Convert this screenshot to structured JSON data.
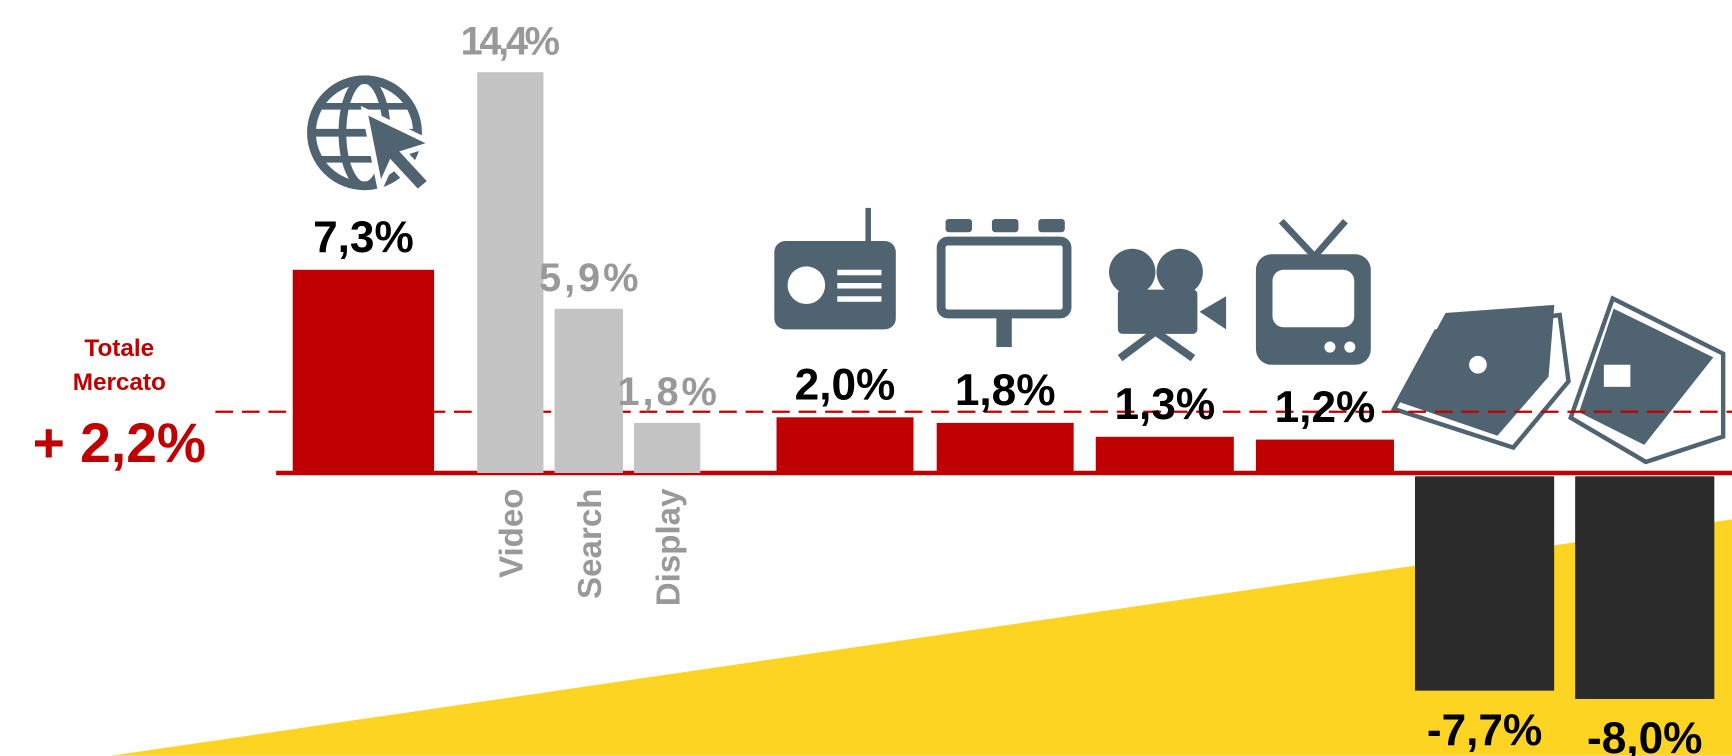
{
  "chart_data": {
    "type": "bar",
    "categories": [
      null,
      "Video",
      "Search",
      "Display",
      null,
      null,
      null,
      null,
      null,
      null
    ],
    "values": [
      7.3,
      14.4,
      5.9,
      1.8,
      2.0,
      1.8,
      1.3,
      1.2,
      -7.7,
      -8.0
    ],
    "value_labels": [
      "7,3%",
      "14,4%",
      "5,9%",
      "1,8%",
      "2,0%",
      "1,8%",
      "1,3%",
      "1,2%",
      "-7,7%",
      "-8,0%"
    ],
    "colors": [
      "#c00000",
      "#c4c4c4",
      "#c4c4c4",
      "#c4c4c4",
      "#c00000",
      "#c00000",
      "#c00000",
      "#c00000",
      "#2b2b2b",
      "#2b2b2b"
    ],
    "reference_line": {
      "label": "Totale Mercato",
      "value": 2.2,
      "value_label": "+ 2,2%",
      "color": "#c00000"
    }
  }
}
